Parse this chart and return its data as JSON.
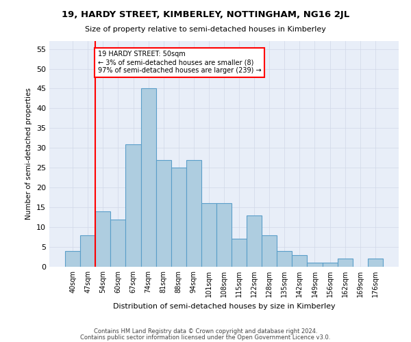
{
  "title1": "19, HARDY STREET, KIMBERLEY, NOTTINGHAM, NG16 2JL",
  "title2": "Size of property relative to semi-detached houses in Kimberley",
  "xlabel": "Distribution of semi-detached houses by size in Kimberley",
  "ylabel": "Number of semi-detached properties",
  "bins": [
    "40sqm",
    "47sqm",
    "54sqm",
    "60sqm",
    "67sqm",
    "74sqm",
    "81sqm",
    "88sqm",
    "94sqm",
    "101sqm",
    "108sqm",
    "115sqm",
    "122sqm",
    "128sqm",
    "135sqm",
    "142sqm",
    "149sqm",
    "156sqm",
    "162sqm",
    "169sqm",
    "176sqm"
  ],
  "values": [
    4,
    8,
    14,
    12,
    31,
    45,
    27,
    25,
    27,
    16,
    16,
    7,
    13,
    8,
    4,
    3,
    1,
    1,
    2,
    0,
    2
  ],
  "bar_color": "#aecde0",
  "bar_edge_color": "#5a9ec9",
  "property_label": "19 HARDY STREET: 50sqm",
  "pct_smaller": 3,
  "n_smaller": 8,
  "pct_larger": 97,
  "n_larger": 239,
  "vline_bin_index": 1.5,
  "ylim": [
    0,
    57
  ],
  "yticks": [
    0,
    5,
    10,
    15,
    20,
    25,
    30,
    35,
    40,
    45,
    50,
    55
  ],
  "grid_color": "#d0d8e8",
  "background_color": "#e8eef8",
  "footer1": "Contains HM Land Registry data © Crown copyright and database right 2024.",
  "footer2": "Contains public sector information licensed under the Open Government Licence v3.0."
}
